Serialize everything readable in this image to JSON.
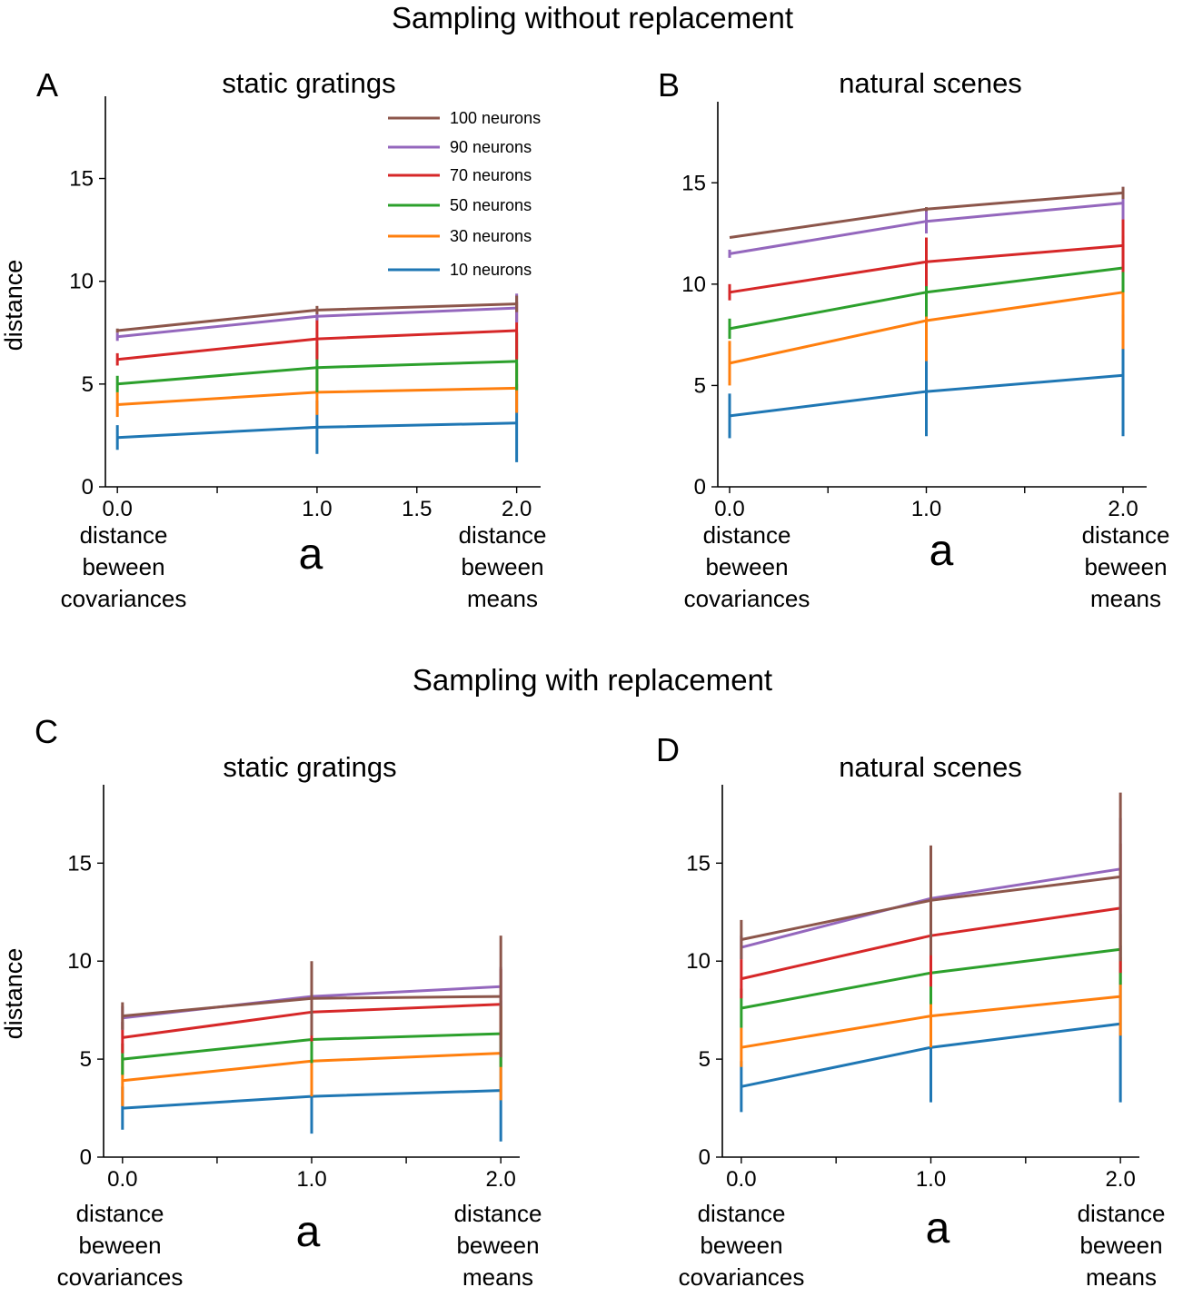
{
  "figure": {
    "top_title": "Sampling without replacement",
    "bottom_title": "Sampling with replacement"
  },
  "legend_labels": {
    "n100": "100 neurons",
    "n90": "90 neurons",
    "n70": "70 neurons",
    "n50": "50 neurons",
    "n30": "30 neurons",
    "n10": "10 neurons"
  },
  "colors": {
    "n100": "#8c564b",
    "n90": "#9467bd",
    "n70": "#d62728",
    "n50": "#2ca02c",
    "n30": "#ff7f0e",
    "n10": "#1f77b4"
  },
  "chart_data": [
    {
      "id": "A",
      "type": "line",
      "letter": "A",
      "title": "static gratings",
      "xlabel": "a",
      "ylabel": "distance",
      "left_note": [
        "distance",
        "beween",
        "covariances"
      ],
      "right_note": [
        "distance",
        "beween",
        "means"
      ],
      "x": [
        0.0,
        1.0,
        2.0
      ],
      "xlim": [
        -0.06,
        2.12
      ],
      "xticks_minor": [
        0.0,
        0.5,
        1.0,
        1.5,
        2.0
      ],
      "xtick_labels": [
        {
          "v": 0.0,
          "t": "0.0"
        },
        {
          "v": 1.0,
          "t": "1.0"
        },
        {
          "v": 1.5,
          "t": "1.5"
        },
        {
          "v": 2.0,
          "t": "2.0"
        }
      ],
      "ylim": [
        0,
        19
      ],
      "yticks": [
        0,
        5,
        10,
        15
      ],
      "ytick_labels": [
        "0",
        "5",
        "10",
        "15"
      ],
      "legend": true,
      "series": [
        {
          "key": "n10",
          "name": "10 neurons",
          "values": [
            2.4,
            2.9,
            3.1
          ],
          "err": [
            0.6,
            1.3,
            1.9
          ]
        },
        {
          "key": "n30",
          "name": "30 neurons",
          "values": [
            4.0,
            4.6,
            4.8
          ],
          "err": [
            0.6,
            1.1,
            1.2
          ]
        },
        {
          "key": "n50",
          "name": "50 neurons",
          "values": [
            5.0,
            5.8,
            6.1
          ],
          "err": [
            0.4,
            1.2,
            1.4
          ]
        },
        {
          "key": "n70",
          "name": "70 neurons",
          "values": [
            6.2,
            7.2,
            7.6
          ],
          "err": [
            0.3,
            1.0,
            1.4
          ]
        },
        {
          "key": "n90",
          "name": "90 neurons",
          "values": [
            7.3,
            8.3,
            8.7
          ],
          "err": [
            0.2,
            0.2,
            0.7
          ]
        },
        {
          "key": "n100",
          "name": "100 neurons",
          "values": [
            7.6,
            8.6,
            8.9
          ],
          "err": [
            0.1,
            0.2,
            0.4
          ]
        }
      ]
    },
    {
      "id": "B",
      "type": "line",
      "letter": "B",
      "title": "natural scenes",
      "xlabel": "a",
      "ylabel": "",
      "left_note": [
        "distance",
        "beween",
        "covariances"
      ],
      "right_note": [
        "distance",
        "beween",
        "means"
      ],
      "x": [
        0.0,
        1.0,
        2.0
      ],
      "xlim": [
        -0.06,
        2.12
      ],
      "xticks_minor": [
        0.0,
        0.5,
        1.0,
        1.5,
        2.0
      ],
      "xtick_labels": [
        {
          "v": 0.0,
          "t": "0.0"
        },
        {
          "v": 1.0,
          "t": "1.0"
        },
        {
          "v": 2.0,
          "t": "2.0"
        }
      ],
      "ylim": [
        0,
        19
      ],
      "yticks": [
        0,
        5,
        10,
        15
      ],
      "ytick_labels": [
        "0",
        "5",
        "10",
        "15"
      ],
      "legend": false,
      "series": [
        {
          "key": "n10",
          "name": "10 neurons",
          "values": [
            3.5,
            4.7,
            5.5
          ],
          "err": [
            1.1,
            2.2,
            3.0
          ]
        },
        {
          "key": "n30",
          "name": "30 neurons",
          "values": [
            6.1,
            8.2,
            9.6
          ],
          "err": [
            1.1,
            2.0,
            2.8
          ]
        },
        {
          "key": "n50",
          "name": "50 neurons",
          "values": [
            7.8,
            9.6,
            10.8
          ],
          "err": [
            0.5,
            1.2,
            1.2
          ]
        },
        {
          "key": "n70",
          "name": "70 neurons",
          "values": [
            9.6,
            11.1,
            11.9
          ],
          "err": [
            0.4,
            1.2,
            1.3
          ]
        },
        {
          "key": "n90",
          "name": "90 neurons",
          "values": [
            11.5,
            13.1,
            14.0
          ],
          "err": [
            0.2,
            0.6,
            0.8
          ]
        },
        {
          "key": "n100",
          "name": "100 neurons",
          "values": [
            12.3,
            13.7,
            14.5
          ],
          "err": [
            0.0,
            0.1,
            0.3
          ]
        }
      ]
    },
    {
      "id": "C",
      "type": "line",
      "letter": "C",
      "title": "static gratings",
      "xlabel": "a",
      "ylabel": "distance",
      "left_note": [
        "distance",
        "beween",
        "covariances"
      ],
      "right_note": [
        "distance",
        "beween",
        "means"
      ],
      "x": [
        0.0,
        1.0,
        2.0
      ],
      "xlim": [
        -0.1,
        2.1
      ],
      "xticks_minor": [
        0.0,
        0.5,
        1.0,
        1.5,
        2.0
      ],
      "xtick_labels": [
        {
          "v": 0.0,
          "t": "0.0"
        },
        {
          "v": 1.0,
          "t": "1.0"
        },
        {
          "v": 2.0,
          "t": "2.0"
        }
      ],
      "ylim": [
        0,
        19
      ],
      "yticks": [
        0,
        5,
        10,
        15
      ],
      "ytick_labels": [
        "0",
        "5",
        "10",
        "15"
      ],
      "legend": false,
      "series": [
        {
          "key": "n10",
          "name": "10 neurons",
          "values": [
            2.5,
            3.1,
            3.4
          ],
          "err": [
            1.1,
            1.9,
            2.6
          ]
        },
        {
          "key": "n30",
          "name": "30 neurons",
          "values": [
            3.9,
            4.9,
            5.3
          ],
          "err": [
            1.3,
            1.8,
            2.4
          ]
        },
        {
          "key": "n50",
          "name": "50 neurons",
          "values": [
            5.0,
            6.0,
            6.3
          ],
          "err": [
            0.8,
            1.2,
            1.7
          ]
        },
        {
          "key": "n70",
          "name": "70 neurons",
          "values": [
            6.1,
            7.4,
            7.8
          ],
          "err": [
            0.8,
            1.5,
            1.8
          ]
        },
        {
          "key": "n90",
          "name": "90 neurons",
          "values": [
            7.1,
            8.2,
            8.7
          ],
          "err": [
            0.6,
            0.8,
            1.0
          ]
        },
        {
          "key": "n100",
          "name": "100 neurons",
          "values": [
            7.2,
            8.1,
            8.2
          ],
          "err": [
            0.7,
            1.9,
            3.1
          ]
        }
      ]
    },
    {
      "id": "D",
      "type": "line",
      "letter": "D",
      "title": "natural scenes",
      "xlabel": "a",
      "ylabel": "",
      "left_note": [
        "distance",
        "beween",
        "covariances"
      ],
      "right_note": [
        "distance",
        "beween",
        "means"
      ],
      "x": [
        0.0,
        1.0,
        2.0
      ],
      "xlim": [
        -0.1,
        2.1
      ],
      "xticks_minor": [
        0.0,
        0.5,
        1.0,
        1.5,
        2.0
      ],
      "xtick_labels": [
        {
          "v": 0.0,
          "t": "0.0"
        },
        {
          "v": 1.0,
          "t": "1.0"
        },
        {
          "v": 2.0,
          "t": "2.0"
        }
      ],
      "ylim": [
        0,
        19
      ],
      "yticks": [
        0,
        5,
        10,
        15
      ],
      "ytick_labels": [
        "0",
        "5",
        "10",
        "15"
      ],
      "legend": false,
      "series": [
        {
          "key": "n10",
          "name": "10 neurons",
          "values": [
            3.6,
            5.6,
            6.8
          ],
          "err": [
            1.3,
            2.8,
            4.0
          ]
        },
        {
          "key": "n30",
          "name": "30 neurons",
          "values": [
            5.6,
            7.2,
            8.2
          ],
          "err": [
            1.0,
            1.6,
            2.0
          ]
        },
        {
          "key": "n50",
          "name": "50 neurons",
          "values": [
            7.6,
            9.4,
            10.6
          ],
          "err": [
            1.0,
            1.6,
            1.8
          ]
        },
        {
          "key": "n70",
          "name": "70 neurons",
          "values": [
            9.1,
            11.3,
            12.7
          ],
          "err": [
            1.0,
            2.6,
            3.3
          ]
        },
        {
          "key": "n90",
          "name": "90 neurons",
          "values": [
            10.7,
            13.2,
            14.7
          ],
          "err": [
            0.6,
            1.5,
            2.6
          ]
        },
        {
          "key": "n100",
          "name": "100 neurons",
          "values": [
            11.1,
            13.1,
            14.3
          ],
          "err": [
            1.0,
            2.8,
            4.3
          ]
        }
      ]
    }
  ]
}
